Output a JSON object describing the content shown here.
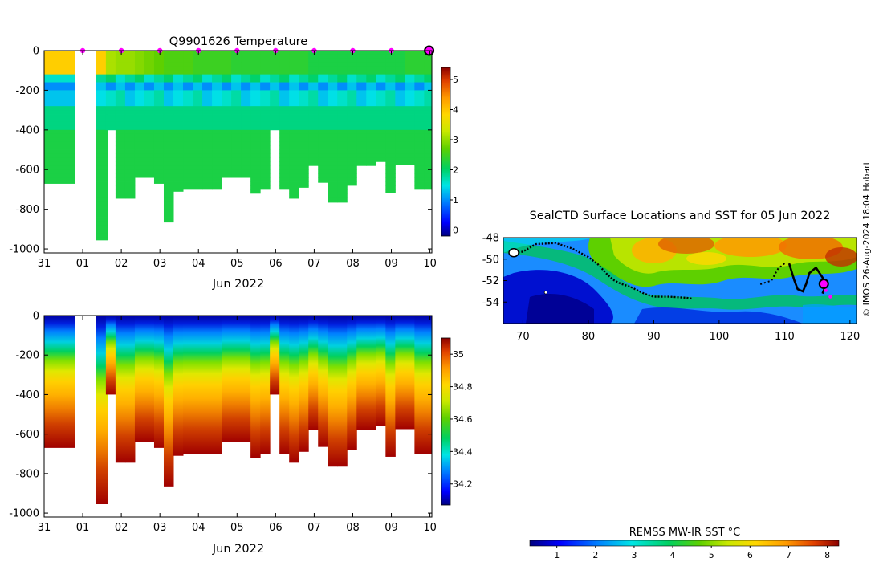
{
  "top_chart_title": "Q9901626  Temperature",
  "map_title": "SealCTD Surface Locations and SST for 05 Jun 2022",
  "credit": "© IMOS 26-Aug-2024 18:04 Hobart",
  "sst_cbar_label": "REMSS MW-IR SST °C",
  "time_axis": {
    "tick_labels": [
      "31",
      "01",
      "02",
      "03",
      "04",
      "05",
      "06",
      "07",
      "08",
      "09",
      "10"
    ],
    "xlabel": "Jun 2022"
  },
  "depth_axis": {
    "tick_labels": [
      "0",
      "-200",
      "-400",
      "-600",
      "-800",
      "-1000"
    ]
  },
  "colors": {
    "jet_stops": [
      "#00007f",
      "#0000ff",
      "#007fff",
      "#00e5e5",
      "#00d060",
      "#5ed000",
      "#c8e800",
      "#ffd700",
      "#ff9a00",
      "#e04000",
      "#8b0000"
    ]
  },
  "chart_data": [
    {
      "type": "heatmap",
      "title": "Q9901626  Temperature",
      "xlabel": "Jun 2022",
      "x_ticks": [
        "31",
        "01",
        "02",
        "03",
        "04",
        "05",
        "06",
        "07",
        "08",
        "09",
        "10"
      ],
      "ylim": [
        -1020,
        0
      ],
      "colorbar": {
        "range": [
          -0.2,
          5.4
        ],
        "ticks": [
          "0",
          "1",
          "2",
          "3",
          "4",
          "5"
        ]
      },
      "markers_day": [
        1,
        2,
        3,
        4,
        5,
        6,
        7,
        8,
        9
      ],
      "current_position_day": 10,
      "profiles_day": [
        0.0,
        1.35,
        1.6,
        1.85,
        2.1,
        2.35,
        2.6,
        2.85,
        3.1,
        3.35,
        3.6,
        3.85,
        4.1,
        4.35,
        4.6,
        4.85,
        5.1,
        5.35,
        5.6,
        5.85,
        6.1,
        6.35,
        6.6,
        6.85,
        7.1,
        7.35,
        7.6,
        7.85,
        8.1,
        8.35,
        8.6,
        8.85,
        9.1,
        9.35,
        9.6,
        9.85
      ],
      "profile_widths_day": [
        0.8,
        0.3,
        0.25,
        0.25,
        0.25,
        0.25,
        0.25,
        0.25,
        0.25,
        0.25,
        0.25,
        0.25,
        0.25,
        0.25,
        0.25,
        0.25,
        0.25,
        0.25,
        0.25,
        0.25,
        0.25,
        0.25,
        0.25,
        0.25,
        0.25,
        0.25,
        0.25,
        0.25,
        0.25,
        0.25,
        0.25,
        0.25,
        0.25,
        0.25,
        0.25,
        0.25
      ],
      "max_depth_m": [
        -670,
        -955,
        -400,
        -745,
        -745,
        -640,
        -640,
        -670,
        -865,
        -710,
        -700,
        -700,
        -700,
        -700,
        -640,
        -640,
        -640,
        -720,
        -700,
        -400,
        -700,
        -745,
        -690,
        -580,
        -665,
        -765,
        -765,
        -680,
        -580,
        -580,
        -560,
        -715,
        -575,
        -575,
        -700,
        -700
      ],
      "surface_temp_c": [
        3.8,
        3.8,
        3.0,
        2.9,
        2.9,
        2.8,
        2.7,
        2.6,
        2.5,
        2.5,
        2.5,
        2.4,
        2.4,
        2.4,
        2.4,
        2.3,
        2.3,
        2.3,
        2.3,
        2.3,
        2.3,
        2.3,
        2.3,
        2.2,
        2.2,
        2.2,
        2.2,
        2.2,
        2.2,
        2.2,
        2.2,
        2.2,
        2.2,
        2.3,
        2.3,
        2.3
      ]
    },
    {
      "type": "heatmap",
      "title": "",
      "xlabel": "Jun 2022",
      "x_ticks": [
        "31",
        "01",
        "02",
        "03",
        "04",
        "05",
        "06",
        "07",
        "08",
        "09",
        "10"
      ],
      "ylim": [
        -1020,
        0
      ],
      "colorbar": {
        "range": [
          34.07,
          35.1
        ],
        "ticks": [
          "34.2",
          "34.4",
          "34.6",
          "34.8",
          "35"
        ]
      },
      "surface_value": 34.05,
      "deep_value": 34.9
    },
    {
      "type": "heatmap",
      "title": "SealCTD Surface Locations and SST for 05 Jun 2022",
      "xlim": [
        67,
        121
      ],
      "ylim": [
        -56.0,
        -48
      ],
      "x_ticks": [
        "70",
        "80",
        "90",
        "100",
        "110",
        "120"
      ],
      "y_ticks": [
        "-48",
        "-50",
        "-52",
        "-54"
      ],
      "colorbar": {
        "label": "REMSS MW-IR SST °C",
        "range": [
          0.3,
          8.3
        ],
        "ticks": [
          "1",
          "2",
          "3",
          "4",
          "5",
          "6",
          "7",
          "8"
        ]
      },
      "track": [
        [
          68.3,
          -49.5
        ],
        [
          70,
          -49.3
        ],
        [
          72,
          -48.6
        ],
        [
          75,
          -48.5
        ],
        [
          77.5,
          -49.0
        ],
        [
          80,
          -49.8
        ],
        [
          81.5,
          -50.5
        ],
        [
          83,
          -51.5
        ],
        [
          84,
          -52.0
        ],
        [
          85,
          -52.3
        ],
        [
          86.5,
          -52.6
        ],
        [
          88.5,
          -53.2
        ],
        [
          90,
          -53.5
        ],
        [
          92.5,
          -53.5
        ],
        [
          95,
          -53.6
        ],
        [
          96,
          -53.7
        ]
      ],
      "track_east": [
        [
          110,
          -50.4
        ],
        [
          109,
          -50.9
        ],
        [
          108,
          -52.0
        ],
        [
          106,
          -52.4
        ],
        [
          110.7,
          -50.4
        ],
        [
          111.5,
          -52.0
        ],
        [
          112,
          -52.8
        ],
        [
          112.8,
          -53.0
        ],
        [
          113.3,
          -52.3
        ],
        [
          113.8,
          -51.3
        ],
        [
          114.8,
          -50.8
        ],
        [
          115.8,
          -51.7
        ],
        [
          116.2,
          -52.6
        ],
        [
          115.8,
          -53.2
        ]
      ],
      "current_location": [
        116,
        -52.3
      ],
      "recent_positions": [
        [
          116.3,
          -52.9
        ],
        [
          117,
          -53.5
        ]
      ]
    }
  ]
}
